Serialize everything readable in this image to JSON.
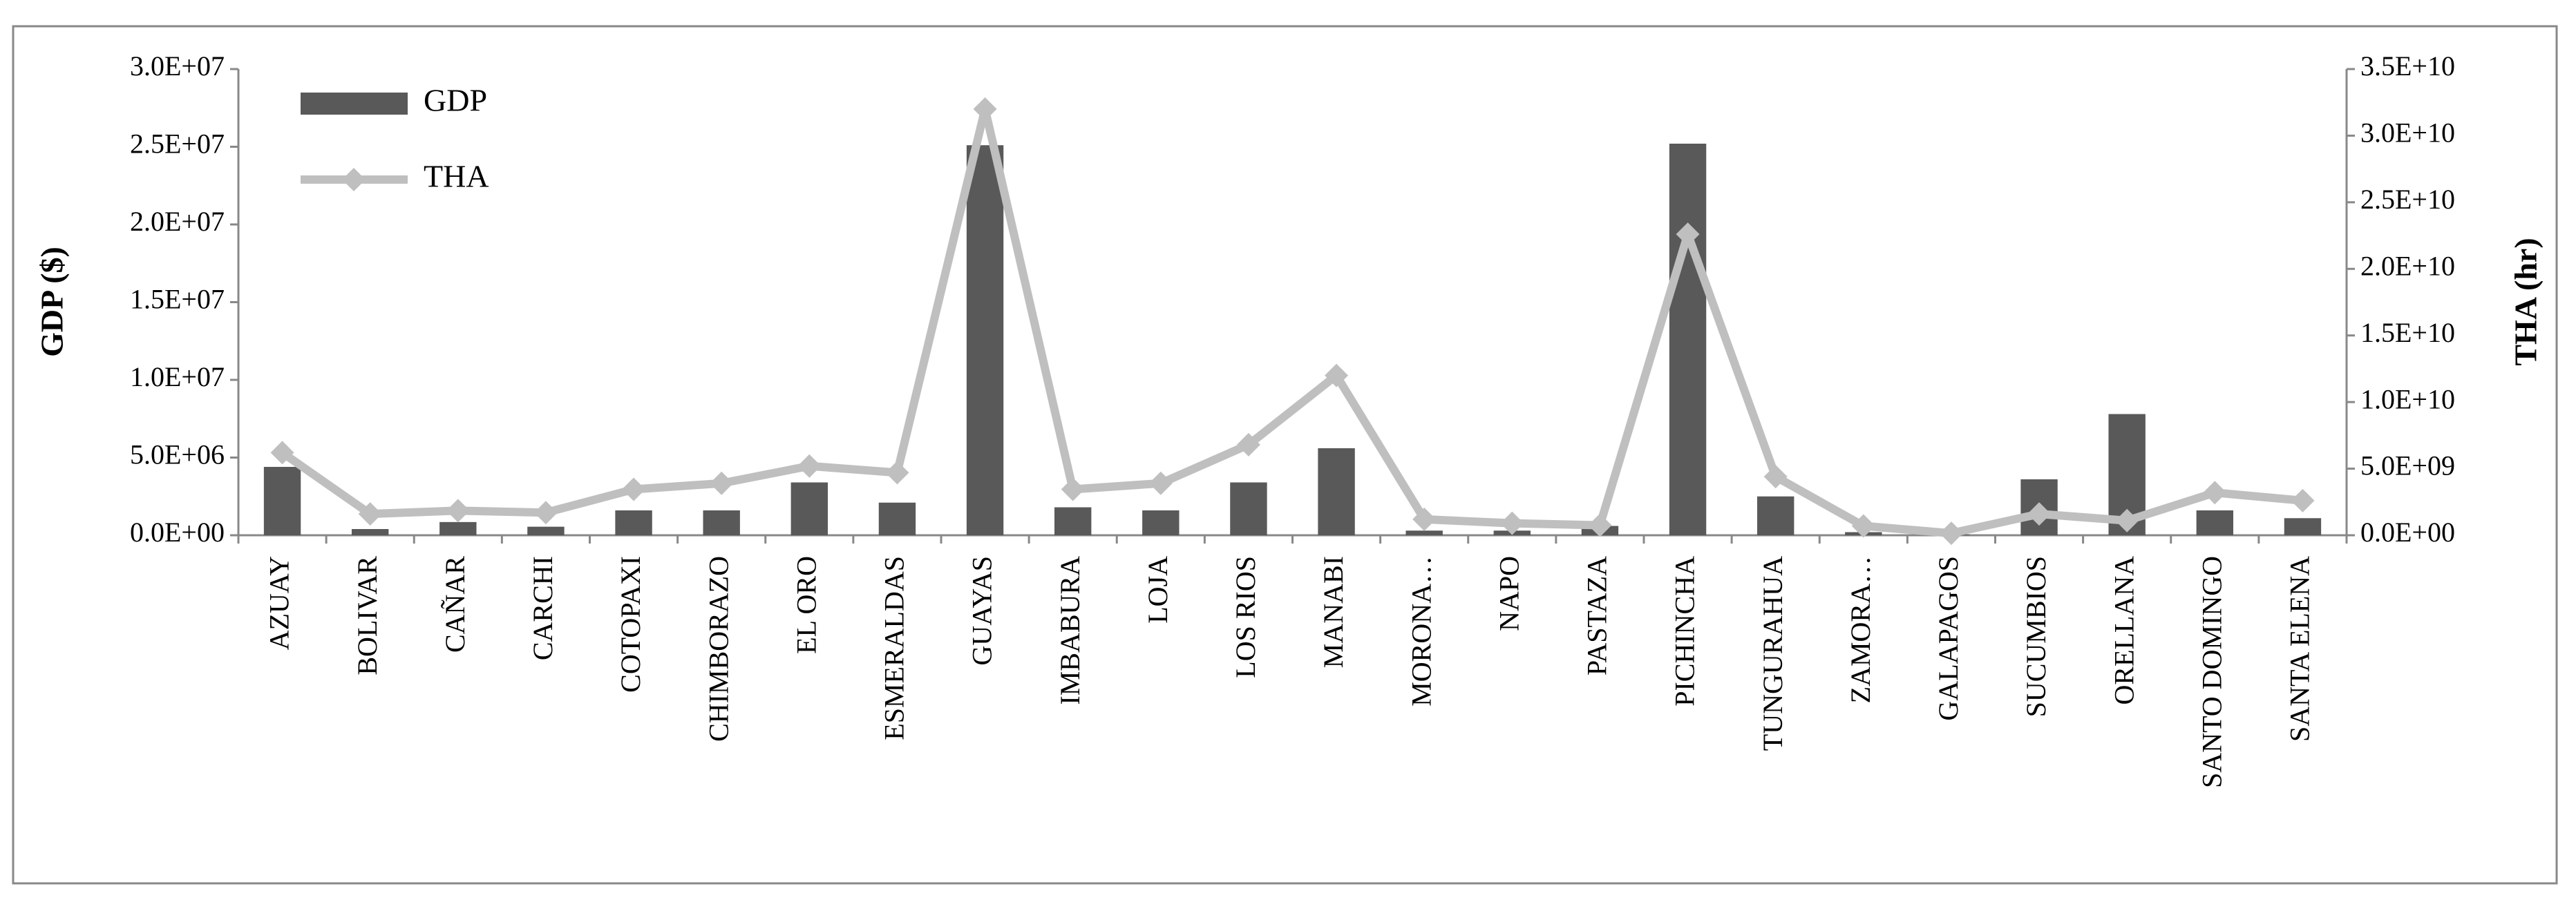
{
  "chart_data": {
    "type": "bar-line",
    "y_label": "GDP ($)",
    "y2_label": "THA (hr)",
    "categories": [
      "AZUAY",
      "BOLIVAR",
      "CAÑAR",
      "CARCHI",
      "COTOPAXI",
      "CHIMBORAZO",
      "EL ORO",
      "ESMERALDAS",
      "GUAYAS",
      "IMBABURA",
      "LOJA",
      "LOS RIOS",
      "MANABI",
      "MORONA…",
      "NAPO",
      "PASTAZA",
      "PICHINCHA",
      "TUNGURAHUA",
      "ZAMORA…",
      "GALAPAGOS",
      "SUCUMBIOS",
      "ORELLANA",
      "SANTO DOMINGO",
      "SANTA ELENA"
    ],
    "series": [
      {
        "name": "GDP",
        "type": "bar",
        "color": "#595959",
        "values": [
          4400000,
          400000,
          850000,
          550000,
          1600000,
          1600000,
          3400000,
          2100000,
          25100000,
          1800000,
          1600000,
          3400000,
          5600000,
          300000,
          300000,
          600000,
          25200000,
          2500000,
          200000,
          50000,
          3600000,
          7800000,
          1600000,
          1100000
        ]
      },
      {
        "name": "THA",
        "type": "line",
        "axis": "y2",
        "color": "#bfbfbf",
        "values": [
          6200000000,
          1600000000,
          1850000000,
          1700000000,
          3450000000,
          3900000000,
          5200000000,
          4700000000,
          32000000000,
          3450000000,
          3900000000,
          6800000000,
          12000000000,
          1200000000,
          900000000,
          750000000,
          22600000000,
          4400000000,
          700000000,
          150000000,
          1600000000,
          1100000000,
          3200000000,
          2600000000
        ]
      }
    ],
    "ylim": [
      0,
      30000000
    ],
    "yticks": [
      {
        "value": 0,
        "label": "0.0E+00"
      },
      {
        "value": 5000000,
        "label": "5.0E+06"
      },
      {
        "value": 10000000,
        "label": "1.0E+07"
      },
      {
        "value": 15000000,
        "label": "1.5E+07"
      },
      {
        "value": 20000000,
        "label": "2.0E+07"
      },
      {
        "value": 25000000,
        "label": "2.5E+07"
      },
      {
        "value": 30000000,
        "label": "3.0E+07"
      }
    ],
    "y2lim": [
      0,
      35000000000
    ],
    "y2ticks": [
      {
        "value": 0,
        "label": "0.0E+00"
      },
      {
        "value": 5000000000,
        "label": "5.0E+09"
      },
      {
        "value": 10000000000,
        "label": "1.0E+10"
      },
      {
        "value": 15000000000,
        "label": "1.5E+10"
      },
      {
        "value": 20000000000,
        "label": "2.0E+10"
      },
      {
        "value": 25000000000,
        "label": "2.5E+10"
      },
      {
        "value": 30000000000,
        "label": "3.0E+10"
      },
      {
        "value": 35000000000,
        "label": "3.5E+10"
      }
    ],
    "legend": "upper left",
    "grid": false
  }
}
